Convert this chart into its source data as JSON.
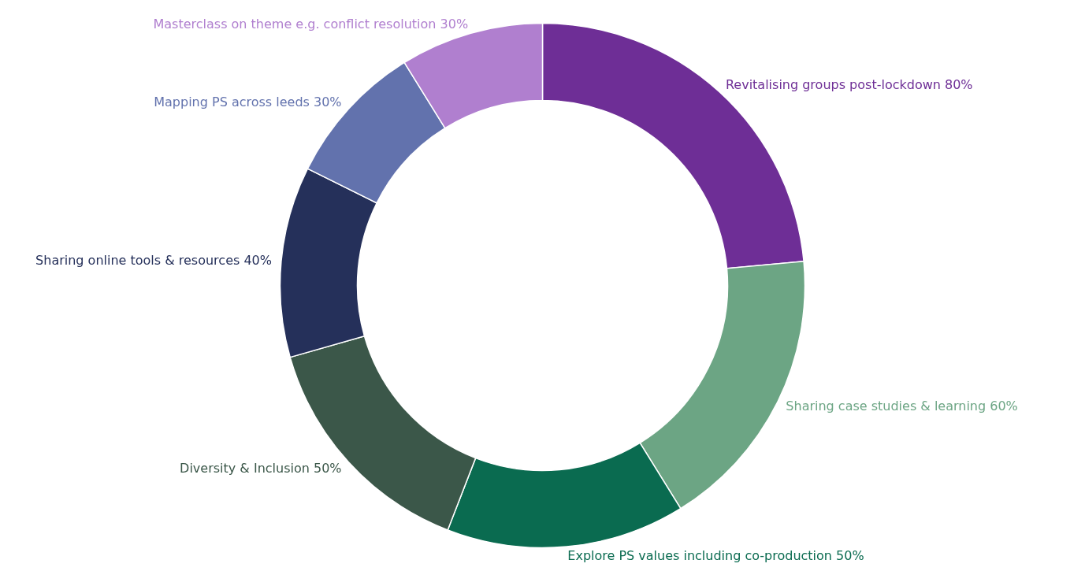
{
  "chart_data": {
    "type": "donut",
    "categories": [
      "Revitalising groups post-lockdown",
      "Sharing case studies & learning",
      "Explore PS values including co-production",
      "Diversity & Inclusion",
      "Sharing online tools & resources",
      "Mapping PS across leeds",
      "Masterclass on theme e.g. conflict resolution"
    ],
    "values": [
      80,
      60,
      50,
      50,
      40,
      30,
      30
    ],
    "value_labels": [
      "80%",
      "60%",
      "50%",
      "50%",
      "40%",
      "30%",
      "30%"
    ],
    "colors": [
      "#6e2e96",
      "#6ca584",
      "#0a6b50",
      "#3b5749",
      "#25305a",
      "#6272ad",
      "#b07fcf"
    ]
  }
}
